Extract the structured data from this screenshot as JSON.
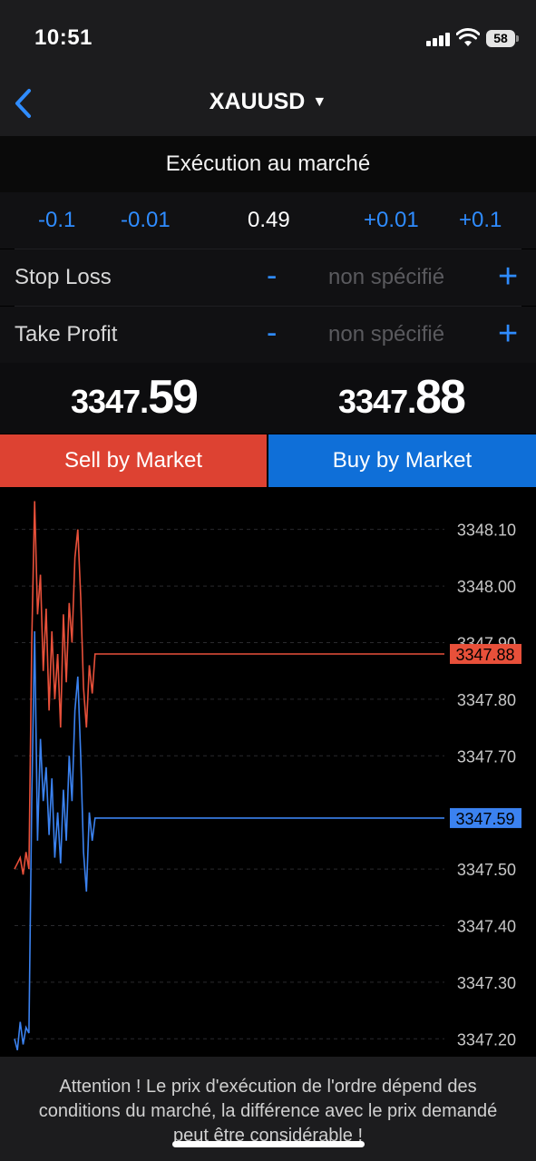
{
  "status_bar": {
    "time": "10:51",
    "battery": "58"
  },
  "nav": {
    "symbol": "XAUUSD",
    "dropdown_glyph": "▼"
  },
  "order": {
    "execution_type": "Exécution au marché",
    "volume": {
      "minus_large": "-0.1",
      "minus_small": "-0.01",
      "value": "0.49",
      "plus_small": "+0.01",
      "plus_large": "+0.1"
    },
    "stop_loss": {
      "label": "Stop Loss",
      "minus": "-",
      "placeholder": "non spécifié",
      "plus": "+"
    },
    "take_profit": {
      "label": "Take Profit",
      "minus": "-",
      "placeholder": "non spécifié",
      "plus": "+"
    }
  },
  "quotes": {
    "bid": {
      "main": "3347.",
      "big": "59"
    },
    "ask": {
      "main": "3347.",
      "big": "88"
    }
  },
  "actions": {
    "sell_label": "Sell by Market",
    "buy_label": "Buy by Market"
  },
  "colors": {
    "sell": "#dd4232",
    "buy": "#0f6fd8",
    "accent": "#2f8cff",
    "ask_line": "#e8503a",
    "bid_line": "#3b82f0"
  },
  "chart_data": {
    "type": "line",
    "y_ticks": [
      "3348.10",
      "3348.00",
      "3347.90",
      "3347.80",
      "3347.70",
      "3347.50",
      "3347.40",
      "3347.30",
      "3347.20"
    ],
    "ylim": [
      3347.17,
      3348.17
    ],
    "ask_label": "3347.88",
    "bid_label": "3347.59",
    "series": [
      {
        "values": [
          3347.5,
          3347.51,
          3347.52,
          3347.49,
          3347.53,
          3347.5,
          3347.9,
          3348.15,
          3347.95,
          3348.02,
          3347.85,
          3347.96,
          3347.78,
          3347.92,
          3347.8,
          3347.88,
          3347.75,
          3347.95,
          3347.83,
          3347.97,
          3347.9,
          3348.05,
          3348.1,
          3347.98,
          3347.82,
          3347.75,
          3347.86,
          3347.81,
          3347.88,
          3347.88,
          3347.88
        ]
      },
      {
        "values": [
          3347.2,
          3347.18,
          3347.23,
          3347.19,
          3347.22,
          3347.21,
          3347.62,
          3347.92,
          3347.55,
          3347.73,
          3347.62,
          3347.68,
          3347.56,
          3347.66,
          3347.52,
          3347.6,
          3347.51,
          3347.64,
          3347.55,
          3347.7,
          3347.62,
          3347.78,
          3347.84,
          3347.7,
          3347.53,
          3347.46,
          3347.6,
          3347.55,
          3347.59,
          3347.59,
          3347.59
        ]
      }
    ]
  },
  "footer": {
    "warning": "Attention ! Le prix d'exécution de l'ordre dépend des conditions du marché, la différence avec le prix demandé peut être considérable !"
  }
}
